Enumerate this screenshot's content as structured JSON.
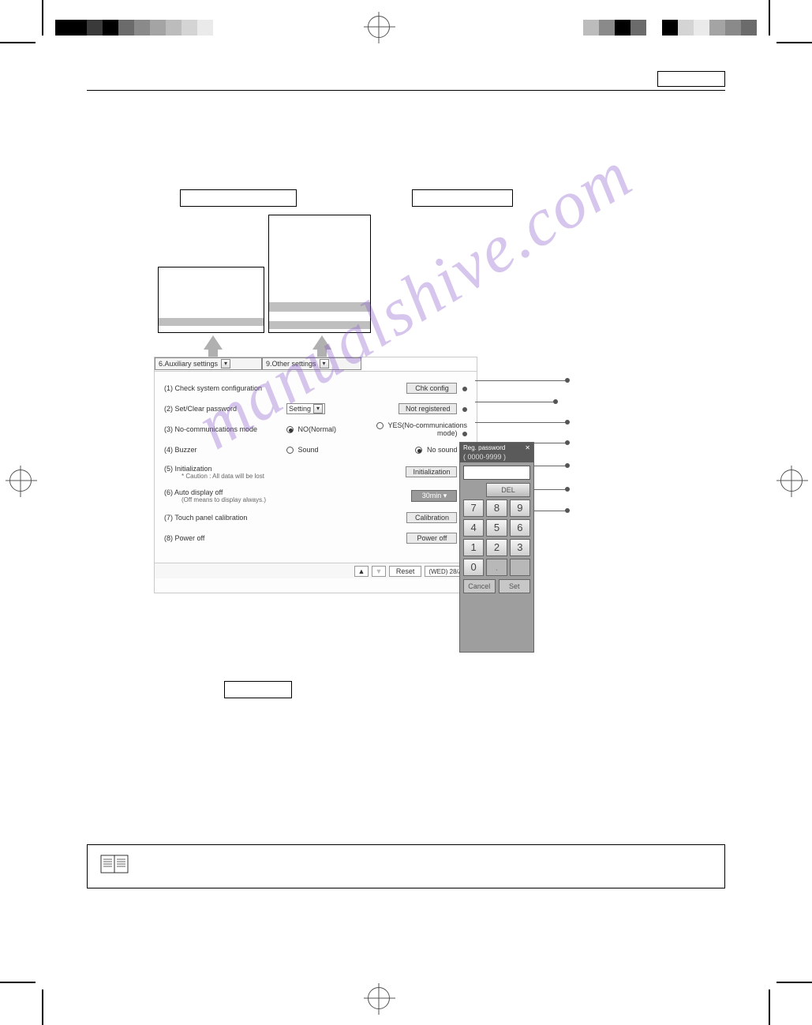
{
  "watermark_text": "manualshive.com",
  "watermark_color": "#8a5ac8",
  "colorbar_left": [
    "#000000",
    "#000000",
    "#3a3a3a",
    "#000000",
    "#6b6b6b",
    "#8a8a8a",
    "#a4a4a4",
    "#bcbcbc",
    "#d4d4d4",
    "#eaeaea",
    "#ffffff"
  ],
  "colorbar_right": [
    "#bcbcbc",
    "#8a8a8a",
    "#000000",
    "#6b6b6b",
    "#ffffff",
    "#000000",
    "#d4d4d4",
    "#eaeaea",
    "#a4a4a4",
    "#8a8a8a",
    "#6b6b6b"
  ],
  "tabs": {
    "aux": {
      "label": "6.Auxiliary settings"
    },
    "other": {
      "label": "9.Other settings"
    }
  },
  "rows": {
    "r1": {
      "label": "(1) Check system configuration",
      "button": "Chk config"
    },
    "r2": {
      "label": "(2) Set/Clear password",
      "select": "Setting",
      "button": "Not registered"
    },
    "r3": {
      "label": "(3) No-communications mode",
      "opt_no": "NO(Normal)",
      "opt_yes": "YES(No-communications mode)"
    },
    "r4": {
      "label": "(4) Buzzer",
      "opt_sound": "Sound",
      "opt_nosound": "No sound"
    },
    "r5": {
      "label": "(5) Initialization",
      "caution": "* Caution : All data will be lost",
      "button": "Initialization"
    },
    "r6": {
      "label": "(6) Auto display off",
      "sub": "(Off means to display always.)",
      "select": "30min"
    },
    "r7": {
      "label": "(7) Touch panel calibration",
      "button": "Calibration"
    },
    "r8": {
      "label": "(8) Power off",
      "button": "Power off"
    }
  },
  "footer": {
    "up": "▲",
    "down": "▼",
    "reset": "Reset",
    "date": "(WED) 28/Aug"
  },
  "keypad": {
    "title": "Reg. password",
    "close": "✕",
    "range": "( 0000-9999 )",
    "del": "DEL",
    "keys": [
      "7",
      "8",
      "9",
      "4",
      "5",
      "6",
      "1",
      "2",
      "3",
      "0",
      ".",
      ""
    ],
    "cancel": "Cancel",
    "set": "Set",
    "title_bg": "#5a5a5a",
    "body_bg": "#9e9e9e",
    "key_gradient_top": "#f5f5f5",
    "key_gradient_bottom": "#cfcfcf"
  },
  "ui_colors": {
    "window_bg": "#fdfdfd",
    "window_border": "#c9c9c9",
    "button_bg": "#eaeaea",
    "button_hi_bg": "#9a9a9a",
    "thumb_bar": "#bfbfbf",
    "arrow_fill": "#b0b0b0",
    "leader": "#666666",
    "dot": "#555555"
  },
  "note_icon": "book"
}
